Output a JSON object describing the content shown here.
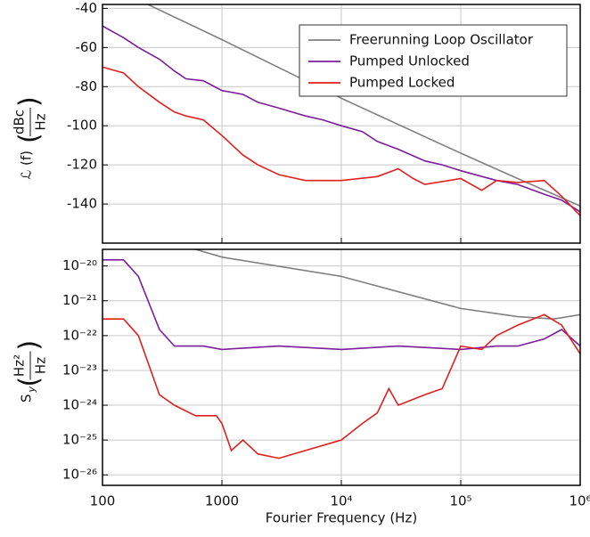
{
  "chart_data": [
    {
      "type": "line",
      "xscale": "log",
      "grid": true,
      "legend": "upper right",
      "ylabel": {
        "symbol": "ℒ (f)",
        "numerator": "dBc",
        "denominator": "Hz"
      },
      "xlim": [
        100,
        1000000
      ],
      "xticks": [
        100,
        1000,
        10000,
        100000,
        1000000
      ],
      "ylim": [
        -160,
        -38
      ],
      "yticks": [
        -140,
        -120,
        -100,
        -80,
        -60,
        -40
      ],
      "series": [
        {
          "name": "Freerunning Loop Oscillator",
          "color": "#808080",
          "x": [
            100,
            1000,
            10000,
            100000,
            300000,
            600000,
            1000000
          ],
          "values": [
            -27,
            -56,
            -86,
            -114,
            -127,
            -135,
            -141
          ]
        },
        {
          "name": "Pumped Unlocked",
          "color": "#7a1e9a",
          "x": [
            100,
            150,
            200,
            300,
            400,
            500,
            700,
            1000,
            1500,
            2000,
            3000,
            5000,
            7000,
            10000,
            15000,
            20000,
            30000,
            50000,
            70000,
            100000,
            200000,
            300000,
            500000,
            700000,
            1000000
          ],
          "values": [
            -49,
            -55,
            -60,
            -66,
            -72,
            -76,
            -77,
            -82,
            -84,
            -88,
            -91,
            -95,
            -97,
            -100,
            -103,
            -108,
            -112,
            -118,
            -120,
            -123,
            -128,
            -130,
            -135,
            -138,
            -144
          ]
        },
        {
          "name": "Pumped Locked",
          "color": "#e02020",
          "x": [
            100,
            150,
            200,
            300,
            400,
            500,
            700,
            1000,
            1500,
            2000,
            3000,
            5000,
            10000,
            20000,
            30000,
            40000,
            50000,
            100000,
            150000,
            200000,
            300000,
            500000,
            700000,
            1000000
          ],
          "values": [
            -70,
            -73,
            -80,
            -88,
            -93,
            -95,
            -97,
            -105,
            -115,
            -120,
            -125,
            -128,
            -128,
            -126,
            -122,
            -127,
            -130,
            -127,
            -133,
            -128,
            -129,
            -128,
            -136,
            -146
          ]
        }
      ]
    },
    {
      "type": "line",
      "xscale": "log",
      "yscale": "log",
      "grid": true,
      "xlabel": "Fourier Frequency (Hz)",
      "ylabel": {
        "symbol": "S",
        "subscript": "y",
        "numerator": "Hz²",
        "denominator": "Hz"
      },
      "xlim": [
        100,
        1000000
      ],
      "xticks": [
        100,
        1000,
        {
          "value": 10000,
          "label": "10⁴"
        },
        {
          "value": 100000,
          "label": "10⁵"
        },
        {
          "value": 1000000,
          "label": "10⁶"
        }
      ],
      "ylim": [
        5e-27,
        3e-20
      ],
      "yticks": [
        {
          "value": 1e-26,
          "label": "10⁻²⁶"
        },
        {
          "value": 1e-25,
          "label": "10⁻²⁵"
        },
        {
          "value": 1e-24,
          "label": "10⁻²⁴"
        },
        {
          "value": 1e-23,
          "label": "10⁻²³"
        },
        {
          "value": 1e-22,
          "label": "10⁻²²"
        },
        {
          "value": 1e-21,
          "label": "10⁻²¹"
        },
        {
          "value": 1e-20,
          "label": "10⁻²⁰"
        }
      ],
      "series": [
        {
          "color": "#808080",
          "x": [
            100,
            600,
            1000,
            10000,
            100000,
            300000,
            600000,
            1000000
          ],
          "values": [
            2e-19,
            3e-20,
            1.8e-20,
            5e-21,
            6e-22,
            3.5e-22,
            3e-22,
            4e-22
          ]
        },
        {
          "color": "#7a1e9a",
          "x": [
            100,
            150,
            200,
            300,
            400,
            700,
            1000,
            3000,
            10000,
            30000,
            100000,
            200000,
            300000,
            500000,
            700000,
            1000000
          ],
          "values": [
            1.5e-20,
            1.5e-20,
            5e-21,
            1.5e-22,
            5e-23,
            5e-23,
            4e-23,
            5e-23,
            4e-23,
            5e-23,
            4e-23,
            5e-23,
            5e-23,
            8e-23,
            1.5e-22,
            5e-23
          ]
        },
        {
          "color": "#e02020",
          "x": [
            100,
            150,
            200,
            300,
            400,
            600,
            900,
            1000,
            1200,
            1500,
            2000,
            3000,
            5000,
            10000,
            15000,
            20000,
            25000,
            30000,
            50000,
            70000,
            100000,
            150000,
            200000,
            300000,
            500000,
            700000,
            1000000
          ],
          "values": [
            3e-22,
            3e-22,
            1e-22,
            2e-24,
            1e-24,
            5e-25,
            5e-25,
            3e-25,
            5e-26,
            1e-25,
            4e-26,
            3e-26,
            5e-26,
            1e-25,
            3e-25,
            6e-25,
            3e-24,
            1e-24,
            2e-24,
            3e-24,
            5e-23,
            4e-23,
            1e-22,
            2e-22,
            4e-22,
            2e-22,
            3e-23
          ]
        }
      ]
    }
  ]
}
